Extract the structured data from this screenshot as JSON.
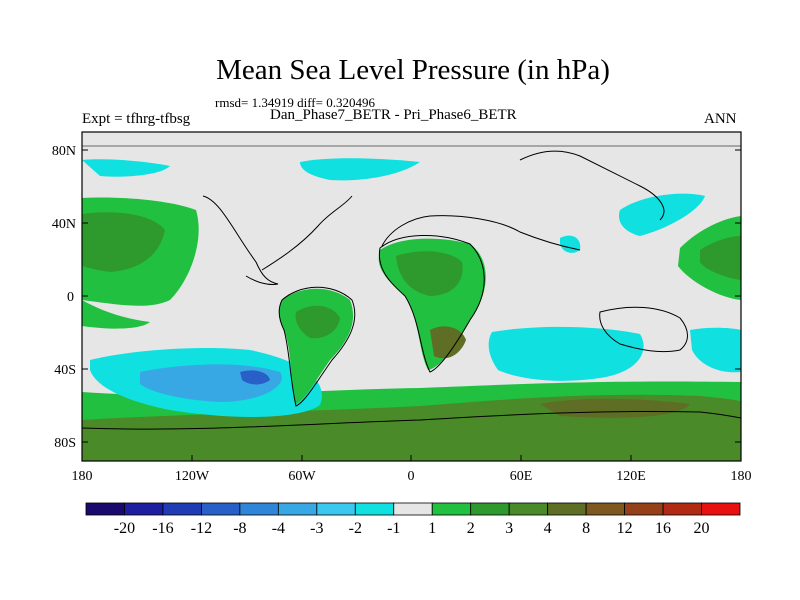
{
  "title": "Mean Sea Level Pressure (in hPa)",
  "stats": "rmsd= 1.34919 diff= 0.320496",
  "left_label": "Expt = tfhrg-tfbsg",
  "subtitle": "Dan_Phase7_BETR - Pri_Phase6_BETR",
  "season": "ANN",
  "lat_ticks": [
    "80N",
    "40N",
    "0",
    "40S",
    "80S"
  ],
  "lon_ticks": [
    "180",
    "120W",
    "60W",
    "0",
    "60E",
    "120E",
    "180"
  ],
  "colorbar": {
    "labels": [
      "-20",
      "-16",
      "-12",
      "-8",
      "-4",
      "-3",
      "-2",
      "-1",
      "1",
      "2",
      "3",
      "4",
      "8",
      "12",
      "16",
      "20"
    ],
    "colors": [
      "#1a0a6e",
      "#1d1ea0",
      "#1f3cb4",
      "#2860c8",
      "#2f86d8",
      "#38a8e4",
      "#3bc8ee",
      "#10e0e0",
      "#e6e6e6",
      "#22c040",
      "#2e9a2e",
      "#4a8a28",
      "#5e6e24",
      "#7e5820",
      "#96401a",
      "#b02a14",
      "#e81010"
    ]
  }
}
